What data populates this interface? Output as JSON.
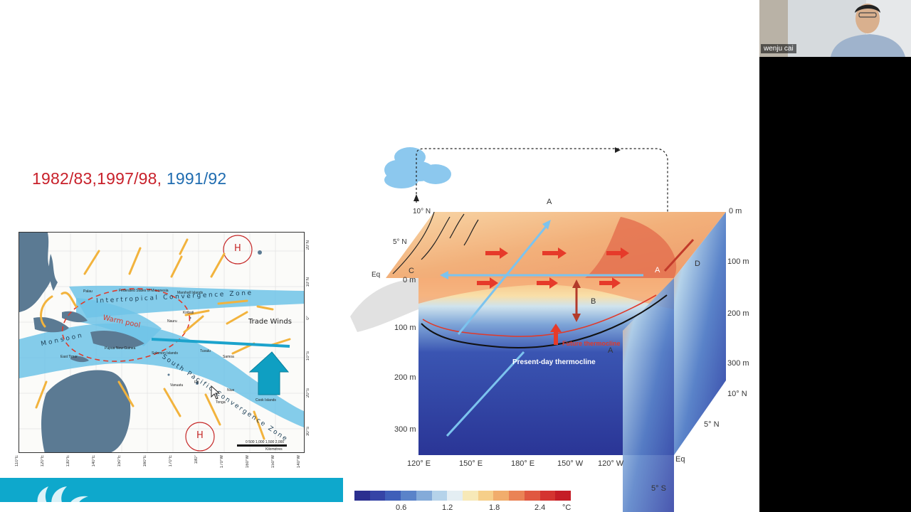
{
  "slide": {
    "periods": {
      "red": "1982/83,1997/98,",
      "blue": "1991/92"
    },
    "map": {
      "high_pressure_label": "H",
      "zone_label": "Intertropical Convergence Zone",
      "spcz_label": "South Pacific Convergence Zone",
      "warm_pool_label": "Warm pool",
      "trade_winds_label": "Trade Winds",
      "monsoon_label": "Monsoon",
      "places": [
        "Palau",
        "Federated States of Micronesia",
        "Marshall Islands",
        "Kiribati",
        "Nauru",
        "Papua New Guinea",
        "Solomon Islands",
        "Tuvalu",
        "Samoa",
        "East Timor",
        "Vanuatu",
        "Fiji",
        "Niue",
        "Tonga",
        "Cook Islands"
      ],
      "scale_label": "0 500 1,000 1,500 2,000",
      "scale_unit": "Kilometres",
      "lon_ticks": [
        "110°E",
        "120°E",
        "130°E",
        "140°E",
        "150°E",
        "160°E",
        "170°E",
        "180°",
        "170°W",
        "160°W",
        "150°W",
        "140°W"
      ],
      "lat_ticks": [
        "20°N",
        "10°N",
        "0°",
        "10°S",
        "20°S",
        "30°S"
      ]
    },
    "diagram": {
      "lat_labels": [
        "10° N",
        "5° N",
        "Eq"
      ],
      "depth_labels_right": [
        "0 m",
        "100 m",
        "200 m",
        "300 m"
      ],
      "depth_labels_left": [
        "0 m",
        "100 m",
        "200 m",
        "300 m"
      ],
      "lon_labels": [
        "120° E",
        "150° E",
        "180° E",
        "150° W",
        "120° W"
      ],
      "side_lat_labels": [
        "10° N",
        "5° N",
        "Eq",
        "5° S"
      ],
      "point_labels": [
        "A",
        "B",
        "C",
        "D"
      ],
      "present_thermocline": "Present-day thermocline",
      "future_thermocline": "Future thermocline"
    },
    "colorbar": {
      "ticks": [
        "0.6",
        "1.2",
        "1.8",
        "2.4"
      ],
      "unit": "°C",
      "colors": [
        "#2b2f8f",
        "#3544a6",
        "#3f5fb9",
        "#5a83c9",
        "#84abd9",
        "#b5d3ea",
        "#e4eef3",
        "#f7e9b8",
        "#f6cf8a",
        "#f1ad6c",
        "#ea8355",
        "#e05840",
        "#d43430",
        "#c51d26"
      ]
    }
  },
  "participant": {
    "name": "wenju cai"
  }
}
